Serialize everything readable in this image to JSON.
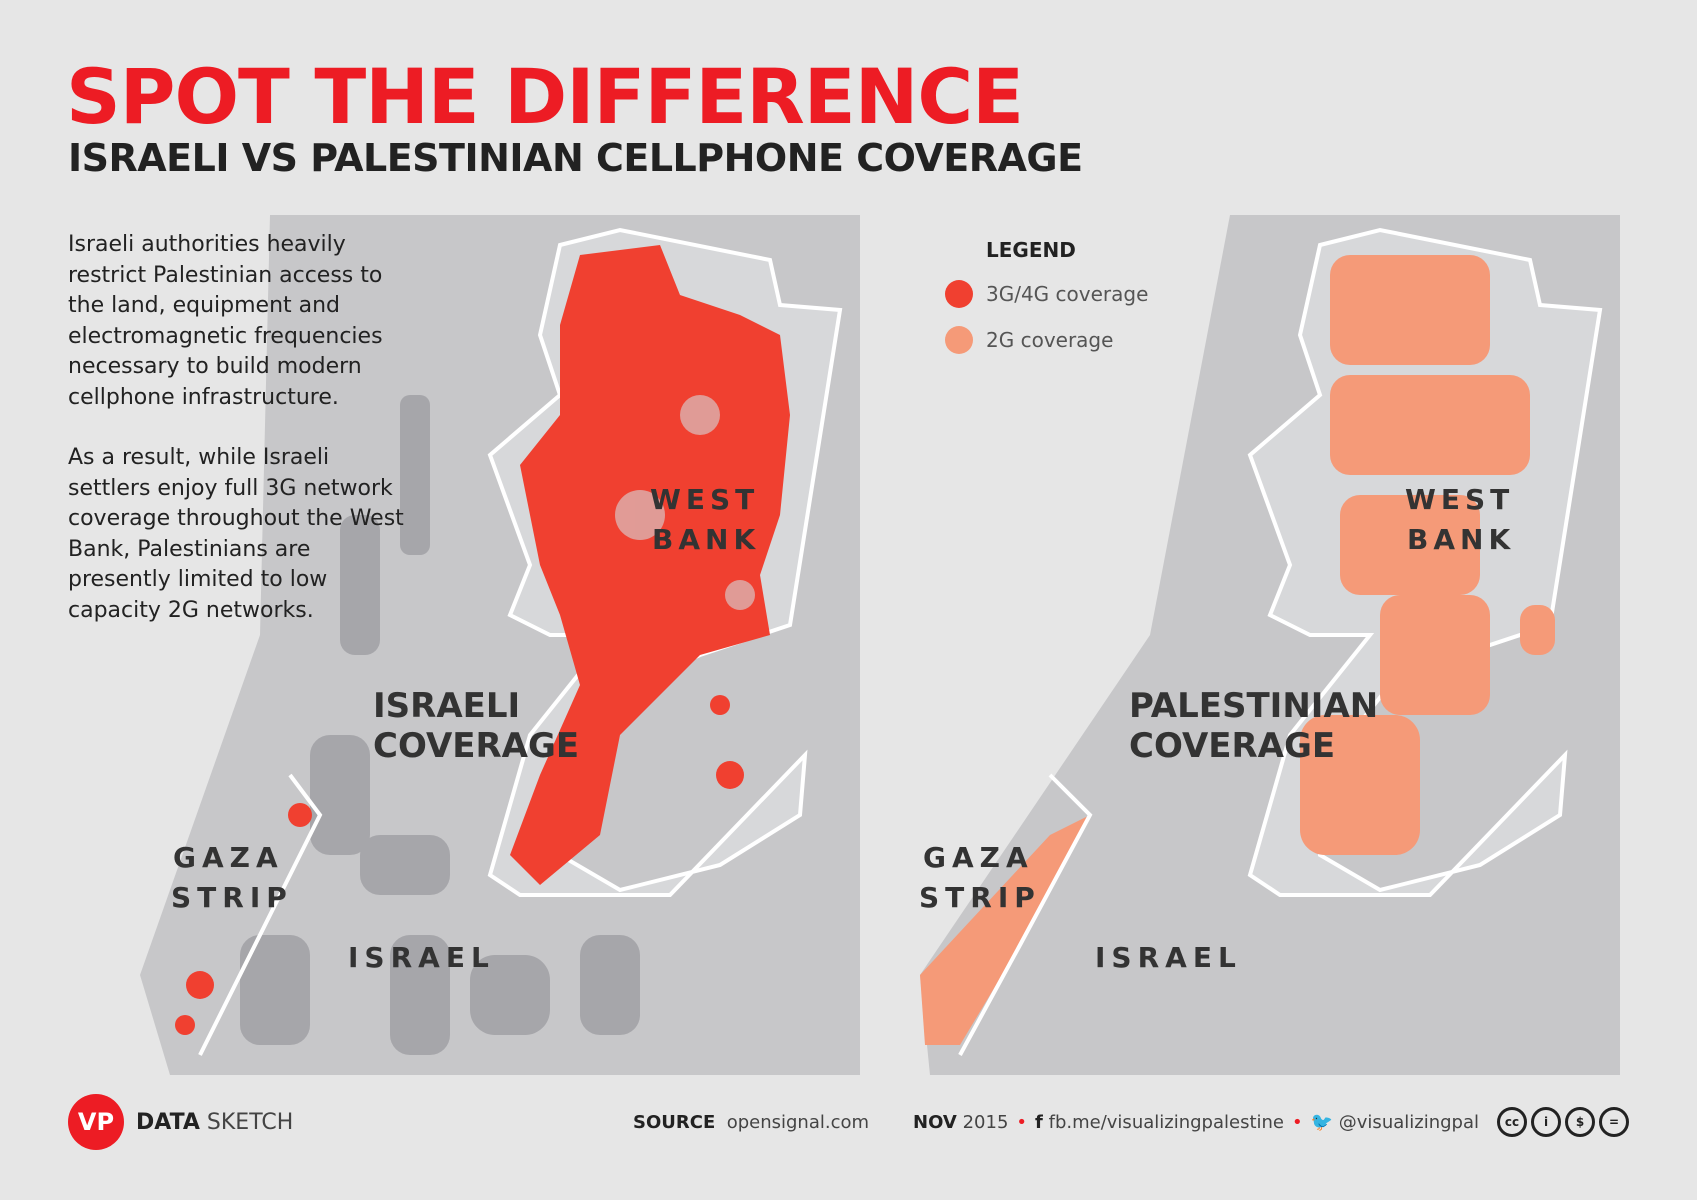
{
  "header": {
    "title": "SPOT THE DIFFERENCE",
    "subtitle": "ISRAELI VS PALESTINIAN CELLPHONE COVERAGE"
  },
  "intro": {
    "p1": "Israeli authorities heavily restrict Palestinian access to the land, equipment and electromagnetic frequencies necessary to build modern cellphone infrastructure.",
    "p2": "As a result, while Israeli settlers enjoy full 3G network coverage throughout the West Bank, Palestinians are presently limited to low capacity 2G networks."
  },
  "maps": {
    "left": {
      "title_line1": "ISRAELI",
      "title_line2": "COVERAGE",
      "coverage_color": "#f04030"
    },
    "right": {
      "title_line1": "PALESTINIAN",
      "title_line2": "COVERAGE",
      "coverage_color": "#f59a78"
    },
    "labels": {
      "wb1": "WEST",
      "wb2": "BANK",
      "gaza1": "GAZA",
      "gaza2": "STRIP",
      "israel": "ISRAEL"
    }
  },
  "legend": {
    "title": "LEGEND",
    "items": [
      {
        "label": "3G/4G coverage",
        "color": "#f04030"
      },
      {
        "label": "2G coverage",
        "color": "#f59a78"
      }
    ]
  },
  "footer": {
    "logo": "VP",
    "brand_bold": "DATA",
    "brand_light": "SKETCH",
    "source_label": "SOURCE",
    "source": "opensignal.com",
    "date_bold": "NOV",
    "date_year": "2015",
    "facebook": "fb.me/visualizingpalestine",
    "twitter": "@visualizingpal",
    "license_icons": [
      "cc",
      "by",
      "nc",
      "nd"
    ]
  }
}
